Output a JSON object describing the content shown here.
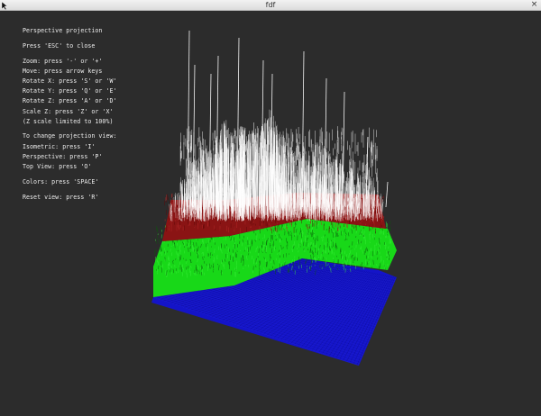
{
  "window": {
    "title": "fdf",
    "close_glyph": "×",
    "icon": "cursor-arrow-icon"
  },
  "help": {
    "projection_mode": "Perspective projection",
    "close_hint": "Press 'ESC' to close",
    "controls": [
      "Zoom: press '-' or '+'",
      "Move: press arrow keys",
      "Rotate X: press 'S' or 'W'",
      "Rotate Y: press 'Q' or 'E'",
      "Rotate Z: press 'A' or 'D'",
      "Scale Z: press 'Z' or 'X'",
      "(Z scale limited to 100%)"
    ],
    "projection_views": [
      "To change projection view:",
      "Isometric: press 'I'",
      "Perspective: press 'P'",
      "Top View: press 'O'"
    ],
    "colors_hint": "Colors: press 'SPACE'",
    "reset_hint": "Reset view: press 'R'"
  },
  "colors": {
    "background": "#2c2c2c",
    "text": "#ededed",
    "low": "#1414c8",
    "mid": "#18d818",
    "high": "#8a1414",
    "peak": "#ffffff"
  }
}
